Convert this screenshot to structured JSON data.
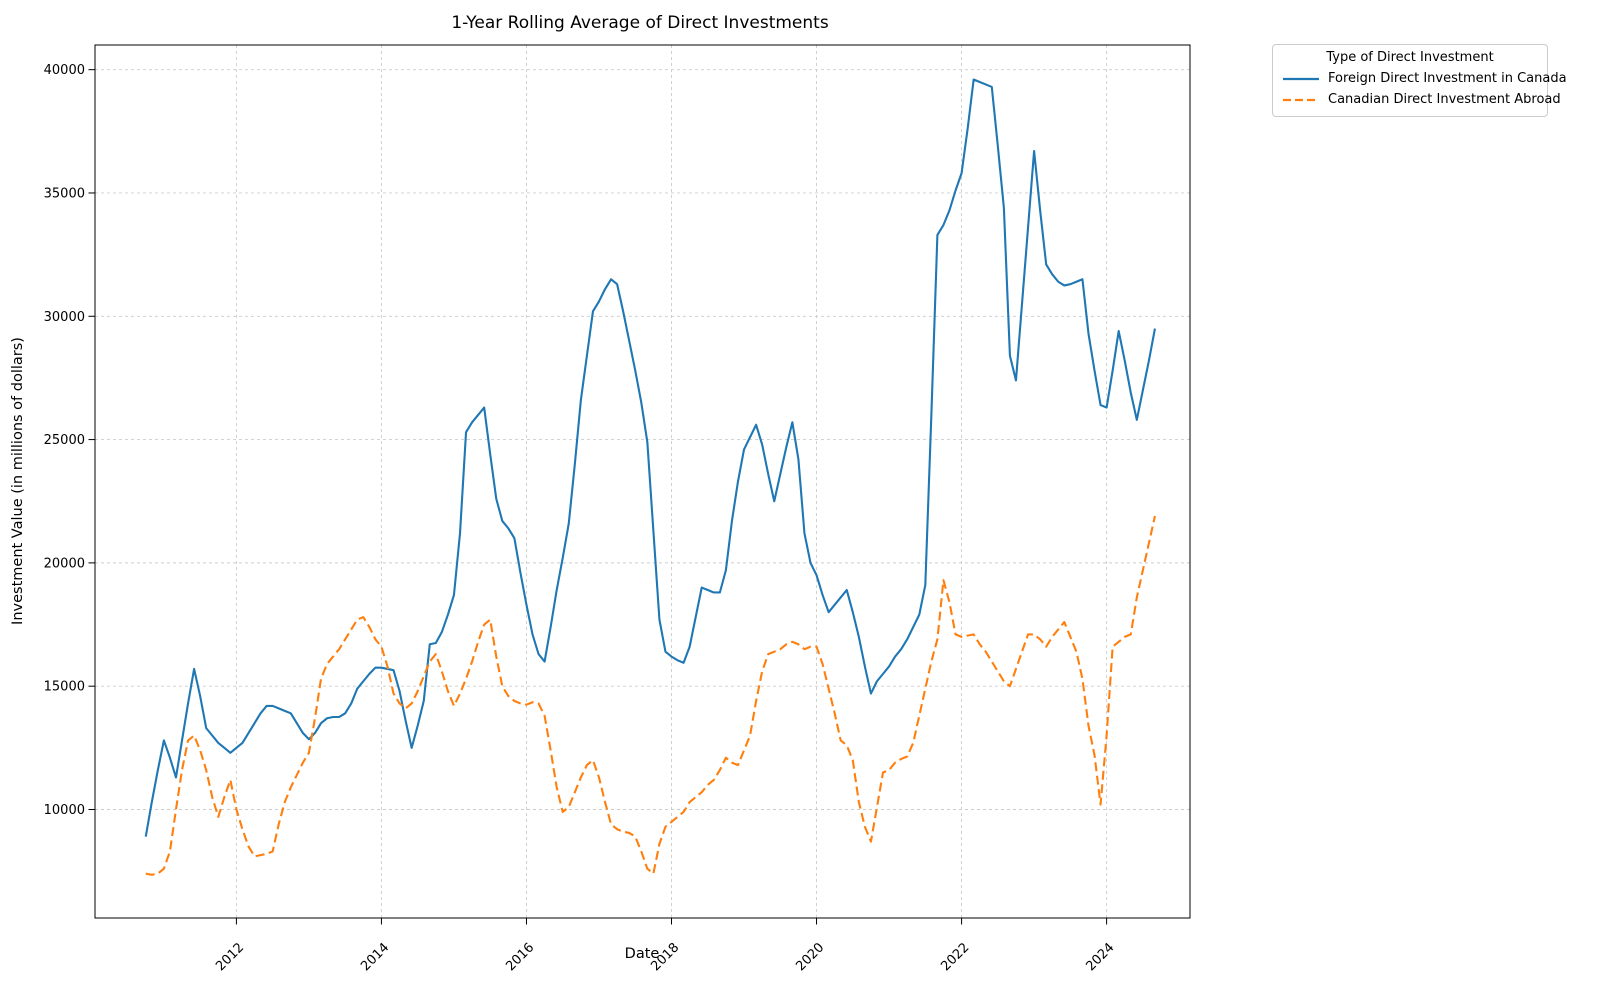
{
  "figure": {
    "title": "1-Year Rolling Average of Direct Investments",
    "xlabel": "Date",
    "ylabel": "Investment Value (in millions of dollars)"
  },
  "legend": {
    "title": "Type of Direct Investment",
    "entries": [
      {
        "label": "Foreign Direct Investment in Canada",
        "color": "#1f77b4",
        "style": "solid"
      },
      {
        "label": "Canadian Direct Investment Abroad",
        "color": "#ff7f0e",
        "style": "dashed"
      }
    ]
  },
  "chart_data": {
    "type": "line",
    "title": "1-Year Rolling Average of Direct Investments",
    "xlabel": "Date",
    "ylabel": "Investment Value (in millions of dollars)",
    "grid": true,
    "grid_style": "dashed",
    "grid_color": "#cccccc",
    "legend_position": "outside-top-right",
    "xlim": [
      2010.05,
      2025.15
    ],
    "ylim": [
      5600,
      41000
    ],
    "x_ticks": [
      2012,
      2014,
      2016,
      2018,
      2020,
      2022,
      2024
    ],
    "x_tick_labels": [
      "2012",
      "2014",
      "2016",
      "2018",
      "2020",
      "2022",
      "2024"
    ],
    "y_ticks": [
      10000,
      15000,
      20000,
      25000,
      30000,
      35000,
      40000
    ],
    "y_tick_labels": [
      "10000",
      "15000",
      "20000",
      "25000",
      "30000",
      "35000",
      "40000"
    ],
    "x_start_year": 2010,
    "x_start_month": 10,
    "x_step_months": 1,
    "x_range_note": "monthly points from 2010-10 to 2024-09",
    "series": [
      {
        "name": "Foreign Direct Investment in Canada",
        "color": "#1f77b4",
        "dash": "solid",
        "values": [
          8900,
          10300,
          11600,
          12800,
          12100,
          11300,
          12800,
          14300,
          15700,
          14600,
          13300,
          13000,
          12700,
          12500,
          12300,
          12500,
          12700,
          13100,
          13500,
          13900,
          14200,
          14200,
          14100,
          14000,
          13900,
          13500,
          13100,
          12850,
          13100,
          13500,
          13700,
          13750,
          13750,
          13900,
          14300,
          14900,
          15200,
          15500,
          15750,
          15750,
          15700,
          15650,
          14800,
          13600,
          12500,
          13400,
          14400,
          16700,
          16750,
          17200,
          17900,
          18700,
          21200,
          25300,
          25700,
          26000,
          26300,
          24400,
          22600,
          21700,
          21400,
          21000,
          19600,
          18300,
          17100,
          16300,
          16000,
          17400,
          18900,
          20200,
          21600,
          24000,
          26600,
          28400,
          30200,
          30600,
          31100,
          31500,
          31300,
          30200,
          29000,
          27800,
          26500,
          24900,
          21300,
          17700,
          16400,
          16200,
          16050,
          15950,
          16600,
          17800,
          19000,
          18900,
          18800,
          18800,
          19700,
          21700,
          23300,
          24600,
          25100,
          25600,
          24800,
          23600,
          22500,
          23600,
          24700,
          25700,
          24200,
          21200,
          20000,
          19500,
          18700,
          18000,
          18300,
          18600,
          18900,
          18000,
          17000,
          15800,
          14700,
          15200,
          15500,
          15800,
          16200,
          16500,
          16900,
          17400,
          17900,
          19100,
          26000,
          33300,
          33700,
          34300,
          35100,
          35800,
          37600,
          39600,
          39500,
          39400,
          39300,
          36900,
          34400,
          28400,
          27400,
          30500,
          33600,
          36700,
          34300,
          32100,
          31700,
          31400,
          31250,
          31300,
          31400,
          31500,
          29300,
          27800,
          26400,
          26300,
          27800,
          29400,
          28200,
          26900,
          25800,
          27000,
          28200,
          29500
        ]
      },
      {
        "name": "Canadian Direct Investment Abroad",
        "color": "#ff7f0e",
        "dash": "dashed",
        "values": [
          7400,
          7350,
          7400,
          7600,
          8300,
          10000,
          11600,
          12800,
          13000,
          12400,
          11600,
          10500,
          9700,
          10500,
          11200,
          10000,
          9200,
          8500,
          8100,
          8150,
          8200,
          8300,
          9400,
          10300,
          10900,
          11400,
          11900,
          12300,
          13700,
          15300,
          15900,
          16200,
          16500,
          16900,
          17300,
          17700,
          17800,
          17400,
          16900,
          16600,
          15800,
          14700,
          14300,
          14100,
          14300,
          14800,
          15400,
          16000,
          16300,
          15600,
          14800,
          14200,
          14700,
          15300,
          16000,
          16800,
          17500,
          17700,
          16200,
          15000,
          14600,
          14400,
          14300,
          14250,
          14350,
          14300,
          13800,
          12400,
          10900,
          9900,
          10100,
          10700,
          11300,
          11800,
          12000,
          11300,
          10300,
          9400,
          9200,
          9100,
          9050,
          8900,
          8300,
          7600,
          7400,
          8600,
          9300,
          9500,
          9700,
          9900,
          10300,
          10500,
          10700,
          11000,
          11200,
          11600,
          12100,
          11900,
          11800,
          12400,
          13000,
          14400,
          15600,
          16300,
          16400,
          16500,
          16700,
          16800,
          16700,
          16500,
          16600,
          16600,
          15900,
          14900,
          13900,
          12800,
          12600,
          12000,
          10300,
          9300,
          8700,
          10100,
          11500,
          11600,
          11900,
          12050,
          12150,
          12700,
          13800,
          14900,
          16000,
          16900,
          19300,
          18400,
          17100,
          17000,
          17050,
          17100,
          16700,
          16400,
          16000,
          15600,
          15200,
          15000,
          15700,
          16400,
          17100,
          17100,
          16900,
          16600,
          17000,
          17300,
          17600,
          17000,
          16400,
          15300,
          13400,
          12200,
          10200,
          13000,
          16600,
          16800,
          17000,
          17100,
          18600,
          19700,
          20800,
          21900
        ]
      }
    ]
  }
}
